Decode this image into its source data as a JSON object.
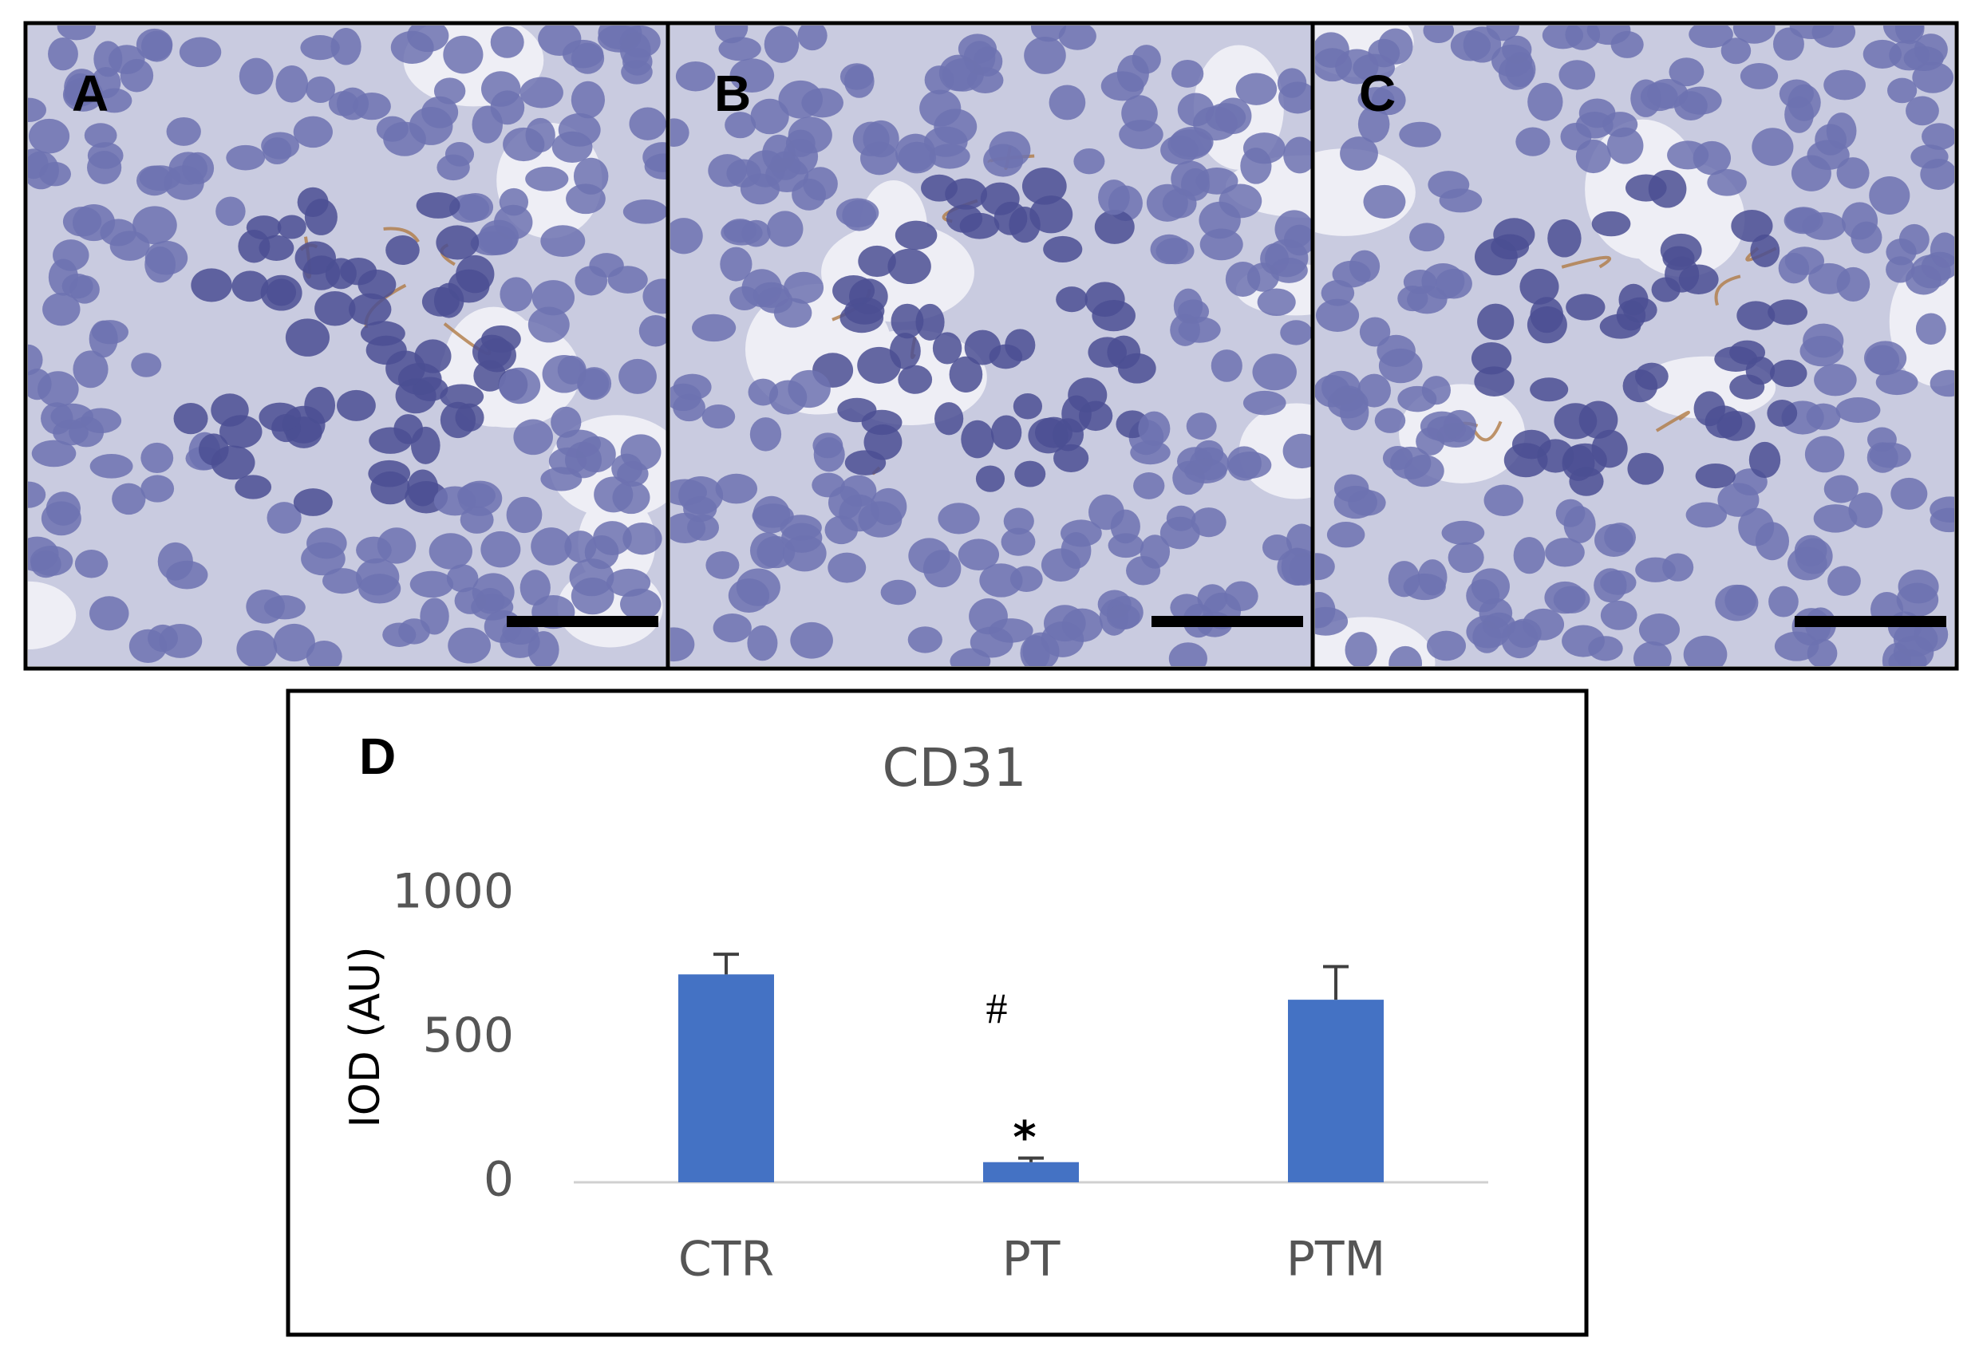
{
  "panel_labels": [
    "A",
    "B",
    "C"
  ],
  "chart_data": {
    "type": "bar",
    "panel_label": "D",
    "title": "CD31",
    "y_label": "IOD (AU)",
    "categories": [
      "CTR",
      "PT",
      "PTM"
    ],
    "values": [
      722,
      70,
      634
    ],
    "errors": [
      70,
      14,
      115
    ],
    "color": "#4472c4",
    "ylim": [
      0,
      1000
    ],
    "yticks": [
      0,
      500,
      1000
    ],
    "grid": false,
    "annotations": [
      "*",
      "#"
    ]
  }
}
